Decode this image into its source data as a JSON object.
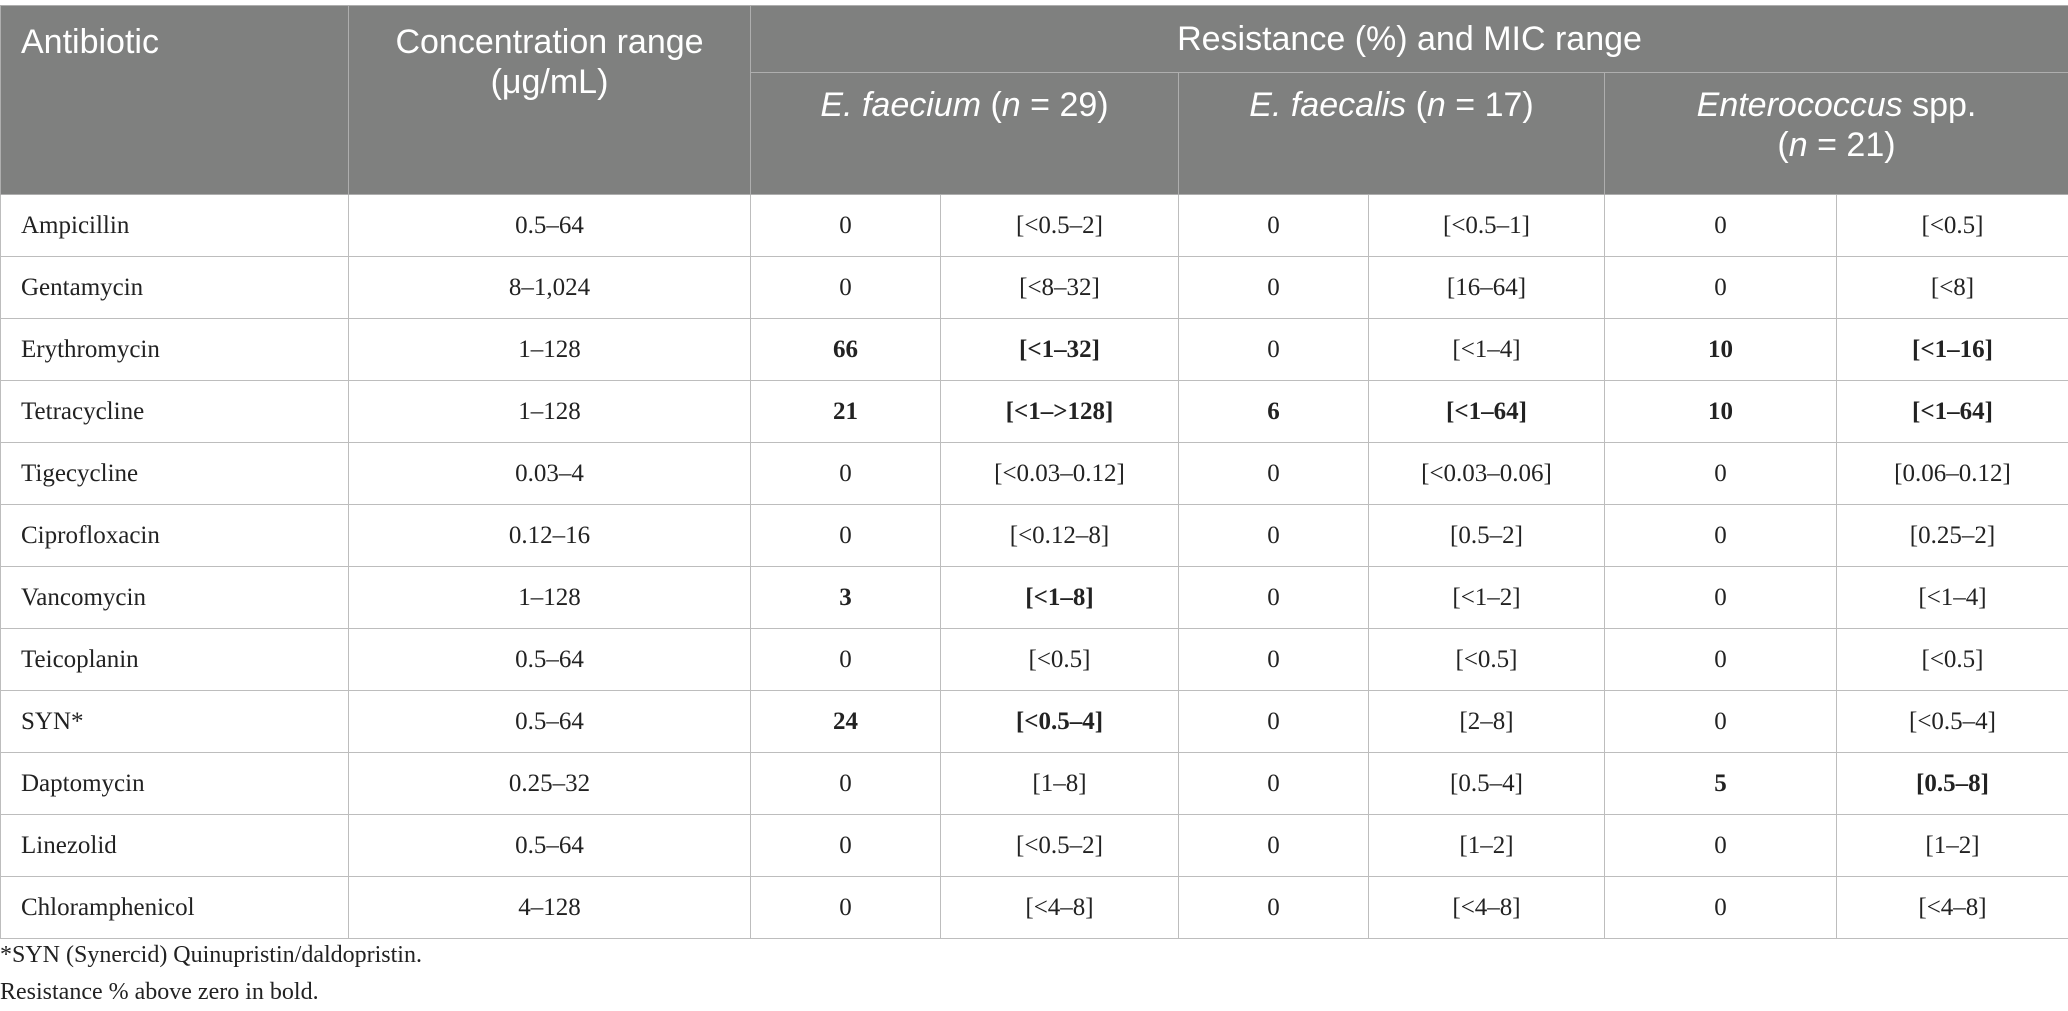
{
  "table": {
    "headers": {
      "antibiotic": "Antibiotic",
      "concentration_line1": "Concentration range",
      "concentration_line2": "(μg/mL)",
      "group": "Resistance (%) and MIC range",
      "species": [
        {
          "genus": "E. faecium",
          "open": " (",
          "n_italic": "n",
          "rest": " = 29)"
        },
        {
          "genus": "E. faecalis",
          "open": " (",
          "n_italic": "n",
          "rest": " = 17)"
        },
        {
          "genus": "Enterococcus",
          "open": " spp.",
          "n_italic": "n",
          "rest": " = 21)",
          "line2_open": "("
        }
      ]
    },
    "rows": [
      {
        "antibiotic": "Ampicillin",
        "concentration": "0.5–64",
        "cells": [
          "0",
          "[<0.5–2]",
          "0",
          "[<0.5–1]",
          "0",
          "[<0.5]"
        ],
        "bold": [
          false,
          false,
          false,
          false,
          false,
          false
        ]
      },
      {
        "antibiotic": "Gentamycin",
        "concentration": "8–1,024",
        "cells": [
          "0",
          "[<8–32]",
          "0",
          "[16–64]",
          "0",
          "[<8]"
        ],
        "bold": [
          false,
          false,
          false,
          false,
          false,
          false
        ]
      },
      {
        "antibiotic": "Erythromycin",
        "concentration": "1–128",
        "cells": [
          "66",
          "[<1–32]",
          "0",
          "[<1–4]",
          "10",
          "[<1–16]"
        ],
        "bold": [
          true,
          true,
          false,
          false,
          true,
          true
        ]
      },
      {
        "antibiotic": "Tetracycline",
        "concentration": "1–128",
        "cells": [
          "21",
          "[<1–>128]",
          "6",
          "[<1–64]",
          "10",
          "[<1–64]"
        ],
        "bold": [
          true,
          true,
          true,
          true,
          true,
          true
        ]
      },
      {
        "antibiotic": "Tigecycline",
        "concentration": "0.03–4",
        "cells": [
          "0",
          "[<0.03–0.12]",
          "0",
          "[<0.03–0.06]",
          "0",
          "[0.06–0.12]"
        ],
        "bold": [
          false,
          false,
          false,
          false,
          false,
          false
        ]
      },
      {
        "antibiotic": "Ciprofloxacin",
        "concentration": "0.12–16",
        "cells": [
          "0",
          "[<0.12–8]",
          "0",
          "[0.5–2]",
          "0",
          "[0.25–2]"
        ],
        "bold": [
          false,
          false,
          false,
          false,
          false,
          false
        ]
      },
      {
        "antibiotic": "Vancomycin",
        "concentration": "1–128",
        "cells": [
          "3",
          "[<1–8]",
          "0",
          "[<1–2]",
          "0",
          "[<1–4]"
        ],
        "bold": [
          true,
          true,
          false,
          false,
          false,
          false
        ]
      },
      {
        "antibiotic": "Teicoplanin",
        "concentration": "0.5–64",
        "cells": [
          "0",
          "[<0.5]",
          "0",
          "[<0.5]",
          "0",
          "[<0.5]"
        ],
        "bold": [
          false,
          false,
          false,
          false,
          false,
          false
        ]
      },
      {
        "antibiotic": "SYN*",
        "concentration": "0.5–64",
        "cells": [
          "24",
          "[<0.5–4]",
          "0",
          "[2–8]",
          "0",
          "[<0.5–4]"
        ],
        "bold": [
          true,
          true,
          false,
          false,
          false,
          false
        ]
      },
      {
        "antibiotic": "Daptomycin",
        "concentration": "0.25–32",
        "cells": [
          "0",
          "[1–8]",
          "0",
          "[0.5–4]",
          "5",
          "[0.5–8]"
        ],
        "bold": [
          false,
          false,
          false,
          false,
          true,
          true
        ]
      },
      {
        "antibiotic": "Linezolid",
        "concentration": "0.5–64",
        "cells": [
          "0",
          "[<0.5–2]",
          "0",
          "[1–2]",
          "0",
          "[1–2]"
        ],
        "bold": [
          false,
          false,
          false,
          false,
          false,
          false
        ]
      },
      {
        "antibiotic": "Chloramphenicol",
        "concentration": "4–128",
        "cells": [
          "0",
          "[<4–8]",
          "0",
          "[<4–8]",
          "0",
          "[<4–8]"
        ],
        "bold": [
          false,
          false,
          false,
          false,
          false,
          false
        ]
      }
    ]
  },
  "footnotes": [
    "*SYN (Synercid) Quinupristin/daldopristin.",
    "Resistance % above zero in bold."
  ],
  "colors": {
    "header_bg": "#7f807f",
    "header_text": "#ffffff",
    "grid_line": "#bdbdbd",
    "body_text": "#222222"
  }
}
